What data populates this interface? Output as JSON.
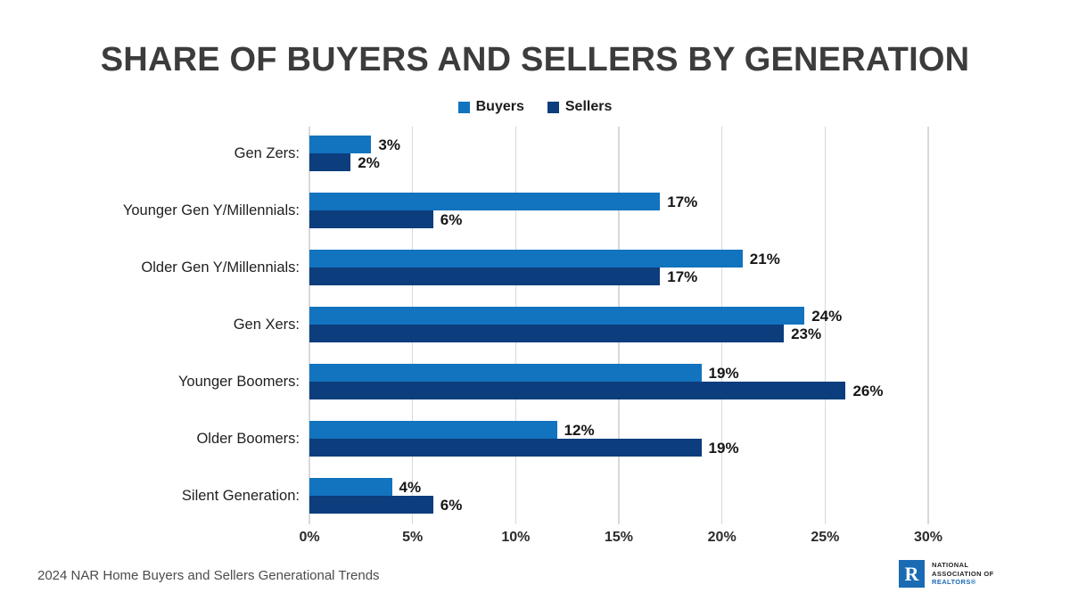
{
  "title": "SHARE OF BUYERS AND SELLERS BY GENERATION",
  "chart_data": {
    "type": "bar",
    "orientation": "horizontal",
    "title": "SHARE OF BUYERS AND SELLERS BY GENERATION",
    "categories": [
      "Gen Zers:",
      "Younger Gen Y/Millennials:",
      "Older Gen Y/Millennials:",
      "Gen Xers:",
      "Younger Boomers:",
      "Older Boomers:",
      "Silent Generation:"
    ],
    "series": [
      {
        "name": "Buyers",
        "color": "#1273BE",
        "values": [
          3,
          17,
          21,
          24,
          19,
          12,
          4
        ]
      },
      {
        "name": "Sellers",
        "color": "#0C3D7C",
        "values": [
          2,
          6,
          17,
          23,
          26,
          19,
          6
        ]
      }
    ],
    "value_suffix": "%",
    "xlim": [
      0,
      30
    ],
    "x_ticks": [
      "0%",
      "5%",
      "10%",
      "15%",
      "20%",
      "25%",
      "30%"
    ],
    "grid": true,
    "gridline_color": "#d9d9d9",
    "legend_position": "top",
    "data_labels": true
  },
  "footer": {
    "source": "2024 NAR Home Buyers and Sellers Generational Trends",
    "logo": {
      "letter": "R",
      "line1": "NATIONAL",
      "line2": "ASSOCIATION OF",
      "line3": "REALTORS®",
      "color": "#1A6BB4"
    }
  }
}
